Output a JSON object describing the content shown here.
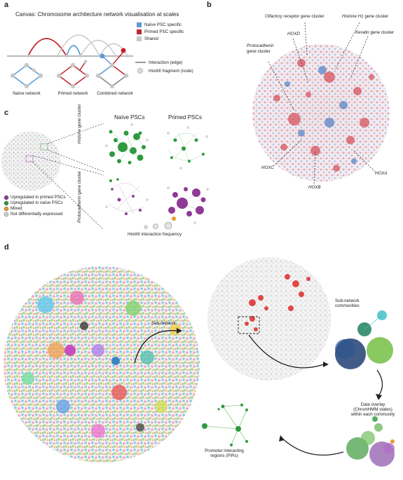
{
  "panel_a": {
    "letter": "a",
    "title": "Canvas: Chromosome architecture network visualisation at scales",
    "legend": {
      "naive": "Naïve PSC specific",
      "primed": "Primed PSC specific",
      "shared": "Shared",
      "edge": "Interaction (edge)",
      "node": "HindIII fragment (node)"
    },
    "networks": [
      "Naïve network",
      "Primed network",
      "Combined network"
    ],
    "colors": {
      "naive": "#5b9bd5",
      "primed": "#c0262d",
      "shared": "#c8c8c8"
    }
  },
  "panel_b": {
    "letter": "b",
    "labels": {
      "olfactory": "Olfactory receptor",
      "olfactory_suffix": " gene cluster",
      "histone": "Histone H1",
      "histone_suffix": " gene cluster",
      "hoxd": "HOXD",
      "keratin": "Keratin",
      "keratin_suffix": " gene cluster",
      "protocadherin": "Protocadherin",
      "protocadherin_suffix": "gene cluster",
      "hoxc": "HOXC",
      "hoxb": "HOXB",
      "hoxa": "HOXA"
    }
  },
  "panel_c": {
    "letter": "c",
    "col_naive": "Naïve PSCs",
    "col_primed": "Primed PSCs",
    "row_histone_italic": "Histone",
    "row_histone_suffix": " gene cluster",
    "row_pcdh_italic": "Protocadherin",
    "row_pcdh_suffix": " gene cluster",
    "legend": [
      {
        "label": "Upregulated in primed PSCs",
        "color": "#8e3a96"
      },
      {
        "label": "Upregulated in naïve PSCs",
        "color": "#2e9a3e"
      },
      {
        "label": "Mixed",
        "color": "#e89a2c"
      },
      {
        "label": "Not differentially expressed",
        "color": "#d0d0d0"
      }
    ],
    "frequency_label": "HindIII interaction frequency"
  },
  "panel_d": {
    "letter": "d",
    "subnetwork": "Sub-network",
    "communities": "Sub-network\ncommunities",
    "overlay": "Data overlay\n(ChromHMM states)\nwithin each community",
    "pirs": "Promoter interacting\nregions (PIRs)"
  }
}
